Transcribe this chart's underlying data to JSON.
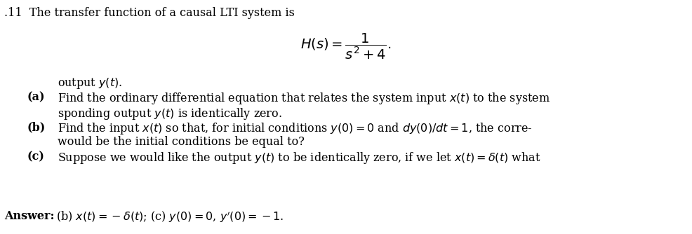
{
  "background_color": "#ffffff",
  "title_text": ".11  The transfer function of a causal LTI system is",
  "formula": "$H(s) = \\dfrac{1}{s^2+4}.$",
  "part_a_label": "(a)",
  "part_a_line1": "Find the ordinary differential equation that relates the system input $x(t)$ to the system",
  "part_a_line2": "output $y(t)$.",
  "part_b_label": "(b)",
  "part_b_line1": "Find the input $x(t)$ so that, for initial conditions $y(0)=0$ and $dy(0)/dt=1$, the corre-",
  "part_b_line2": "sponding output $y(t)$ is identically zero.",
  "part_c_label": "(c)",
  "part_c_line1": "Suppose we would like the output $y(t)$ to be identically zero, if we let $x(t)=\\delta(t)$ what",
  "part_c_line2": "would be the initial conditions be equal to?",
  "answer_label": "Answer:",
  "answer_text": " (b) $x(t)=-\\delta(t)$; (c) $y(0)=0$, $y'(0)=-1$.",
  "fig_width": 9.86,
  "fig_height": 3.34,
  "dpi": 100,
  "fontsize": 11.5,
  "formula_fontsize": 14
}
